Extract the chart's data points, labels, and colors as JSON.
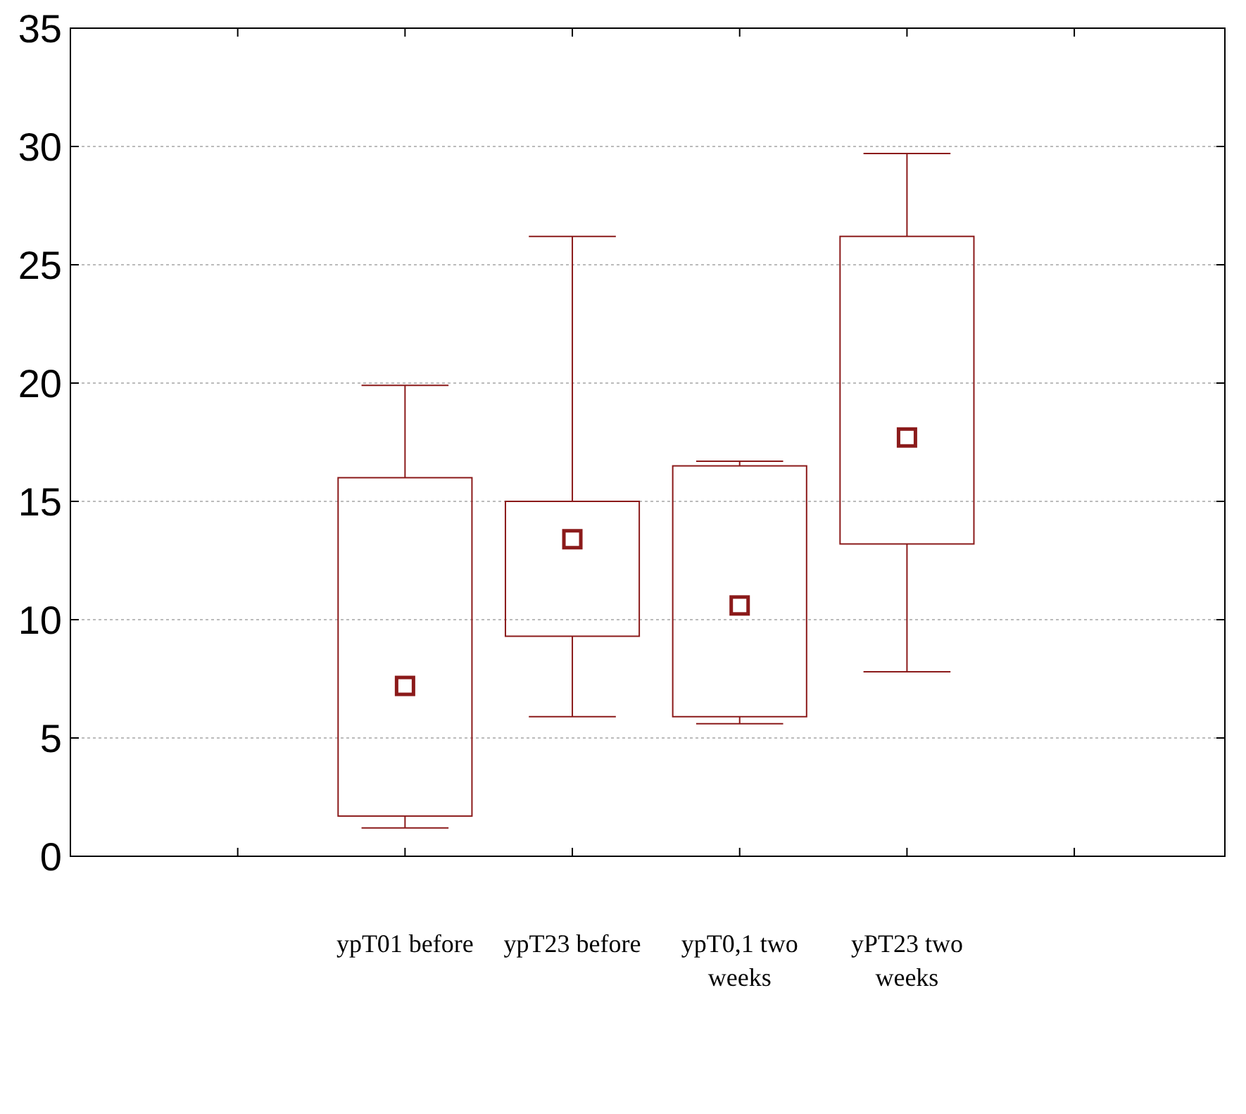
{
  "chart_data": {
    "type": "box",
    "categories": [
      null,
      "ypT01 before",
      "ypT23 before",
      "ypT0,1  two weeks",
      "yPT23  two weeks",
      null
    ],
    "boxes": [
      null,
      {
        "low": 1.2,
        "q1": 1.7,
        "median": 7.2,
        "q3": 16.0,
        "high": 19.9
      },
      {
        "low": 5.9,
        "q1": 9.3,
        "median": 13.4,
        "q3": 15.0,
        "high": 26.2
      },
      {
        "low": 5.6,
        "q1": 5.9,
        "median": 10.6,
        "q3": 16.5,
        "high": 16.7
      },
      {
        "low": 7.8,
        "q1": 13.2,
        "median": 17.7,
        "q3": 26.2,
        "high": 29.7
      },
      null
    ],
    "color": "#8b1a1a",
    "ylim": [
      0,
      35
    ],
    "yticks": [
      0,
      5,
      10,
      15,
      20,
      25,
      30,
      35
    ],
    "grid": "y",
    "marker": "square"
  }
}
